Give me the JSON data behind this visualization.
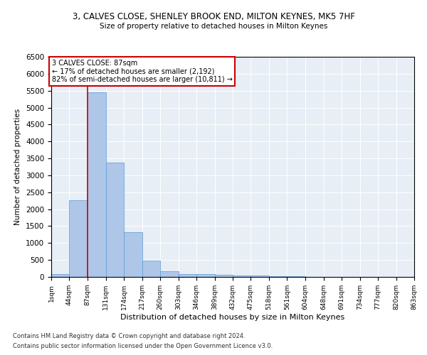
{
  "title": "3, CALVES CLOSE, SHENLEY BROOK END, MILTON KEYNES, MK5 7HF",
  "subtitle": "Size of property relative to detached houses in Milton Keynes",
  "xlabel": "Distribution of detached houses by size in Milton Keynes",
  "ylabel": "Number of detached properties",
  "footer_line1": "Contains HM Land Registry data © Crown copyright and database right 2024.",
  "footer_line2": "Contains public sector information licensed under the Open Government Licence v3.0.",
  "annotation_title": "3 CALVES CLOSE: 87sqm",
  "annotation_line1": "← 17% of detached houses are smaller (2,192)",
  "annotation_line2": "82% of semi-detached houses are larger (10,811) →",
  "property_size": 87,
  "bin_edges": [
    1,
    44,
    87,
    131,
    174,
    217,
    260,
    303,
    346,
    389,
    432,
    475,
    518,
    561,
    604,
    648,
    691,
    734,
    777,
    820,
    863
  ],
  "bar_values": [
    75,
    2275,
    5450,
    3380,
    1320,
    480,
    165,
    90,
    75,
    55,
    40,
    35,
    30,
    15,
    10,
    8,
    5,
    4,
    3,
    2
  ],
  "bar_color": "#aec6e8",
  "bar_edge_color": "#5b9bd5",
  "vertical_line_color": "#cc0000",
  "annotation_box_color": "#cc0000",
  "bg_color": "#e8eef5",
  "ylim": [
    0,
    6500
  ],
  "yticks": [
    0,
    500,
    1000,
    1500,
    2000,
    2500,
    3000,
    3500,
    4000,
    4500,
    5000,
    5500,
    6000,
    6500
  ]
}
